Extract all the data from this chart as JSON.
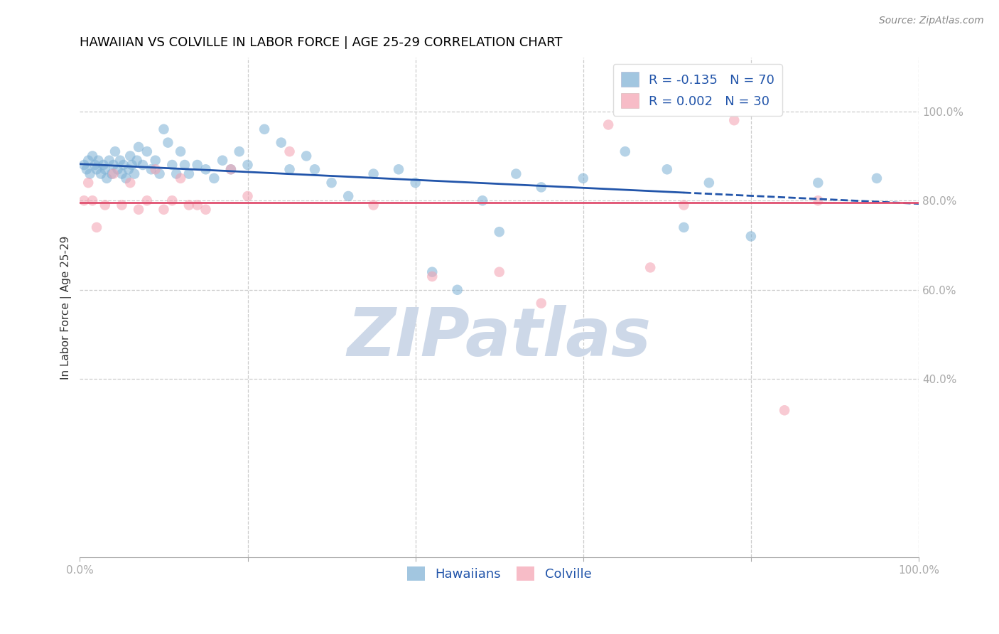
{
  "title": "HAWAIIAN VS COLVILLE IN LABOR FORCE | AGE 25-29 CORRELATION CHART",
  "source": "Source: ZipAtlas.com",
  "ylabel": "In Labor Force | Age 25-29",
  "xlim": [
    0.0,
    1.0
  ],
  "ylim": [
    0.0,
    1.12
  ],
  "xticks": [
    0.0,
    0.2,
    0.4,
    0.6,
    0.8,
    1.0
  ],
  "yticks": [
    0.4,
    0.6,
    0.8,
    1.0
  ],
  "grid_color": "#cccccc",
  "hawaiians_color": "#7bafd4",
  "colville_color": "#f4a0b0",
  "trend_hawaiians_color": "#2255aa",
  "trend_colville_color": "#e05070",
  "R_hawaiians": -0.135,
  "N_hawaiians": 70,
  "R_colville": 0.002,
  "N_colville": 30,
  "legend_label_hawaiians": "Hawaiians",
  "legend_label_colville": "Colville",
  "hawaiians_x": [
    0.005,
    0.008,
    0.01,
    0.012,
    0.015,
    0.018,
    0.02,
    0.022,
    0.025,
    0.028,
    0.03,
    0.032,
    0.035,
    0.038,
    0.04,
    0.042,
    0.045,
    0.048,
    0.05,
    0.052,
    0.055,
    0.058,
    0.06,
    0.062,
    0.065,
    0.068,
    0.07,
    0.075,
    0.08,
    0.085,
    0.09,
    0.095,
    0.1,
    0.105,
    0.11,
    0.115,
    0.12,
    0.125,
    0.13,
    0.14,
    0.15,
    0.16,
    0.17,
    0.18,
    0.19,
    0.2,
    0.22,
    0.24,
    0.25,
    0.27,
    0.28,
    0.3,
    0.32,
    0.35,
    0.38,
    0.4,
    0.42,
    0.45,
    0.48,
    0.5,
    0.52,
    0.55,
    0.6,
    0.65,
    0.7,
    0.72,
    0.75,
    0.8,
    0.88,
    0.95
  ],
  "hawaiians_y": [
    0.88,
    0.87,
    0.89,
    0.86,
    0.9,
    0.88,
    0.87,
    0.89,
    0.86,
    0.88,
    0.87,
    0.85,
    0.89,
    0.86,
    0.88,
    0.91,
    0.87,
    0.89,
    0.86,
    0.88,
    0.85,
    0.87,
    0.9,
    0.88,
    0.86,
    0.89,
    0.92,
    0.88,
    0.91,
    0.87,
    0.89,
    0.86,
    0.96,
    0.93,
    0.88,
    0.86,
    0.91,
    0.88,
    0.86,
    0.88,
    0.87,
    0.85,
    0.89,
    0.87,
    0.91,
    0.88,
    0.96,
    0.93,
    0.87,
    0.9,
    0.87,
    0.84,
    0.81,
    0.86,
    0.87,
    0.84,
    0.64,
    0.6,
    0.8,
    0.73,
    0.86,
    0.83,
    0.85,
    0.91,
    0.87,
    0.74,
    0.84,
    0.72,
    0.84,
    0.85
  ],
  "colville_x": [
    0.005,
    0.01,
    0.015,
    0.02,
    0.03,
    0.04,
    0.05,
    0.06,
    0.07,
    0.08,
    0.09,
    0.1,
    0.11,
    0.12,
    0.13,
    0.14,
    0.15,
    0.18,
    0.2,
    0.25,
    0.35,
    0.42,
    0.5,
    0.55,
    0.63,
    0.68,
    0.72,
    0.78,
    0.84,
    0.88
  ],
  "colville_y": [
    0.8,
    0.84,
    0.8,
    0.74,
    0.79,
    0.86,
    0.79,
    0.84,
    0.78,
    0.8,
    0.87,
    0.78,
    0.8,
    0.85,
    0.79,
    0.79,
    0.78,
    0.87,
    0.81,
    0.91,
    0.79,
    0.63,
    0.64,
    0.57,
    0.97,
    0.65,
    0.79,
    0.98,
    0.33,
    0.8
  ],
  "trend_h_x0": 0.0,
  "trend_h_y0": 0.882,
  "trend_h_x1": 1.0,
  "trend_h_y1": 0.793,
  "trend_c_y": 0.795,
  "trend_solid_end": 0.72,
  "background_color": "#ffffff",
  "watermark_text": "ZIPatlas",
  "watermark_color": "#cdd8e8",
  "title_fontsize": 13,
  "tick_fontsize": 11,
  "label_fontsize": 11,
  "legend_fontsize": 13,
  "source_fontsize": 10
}
